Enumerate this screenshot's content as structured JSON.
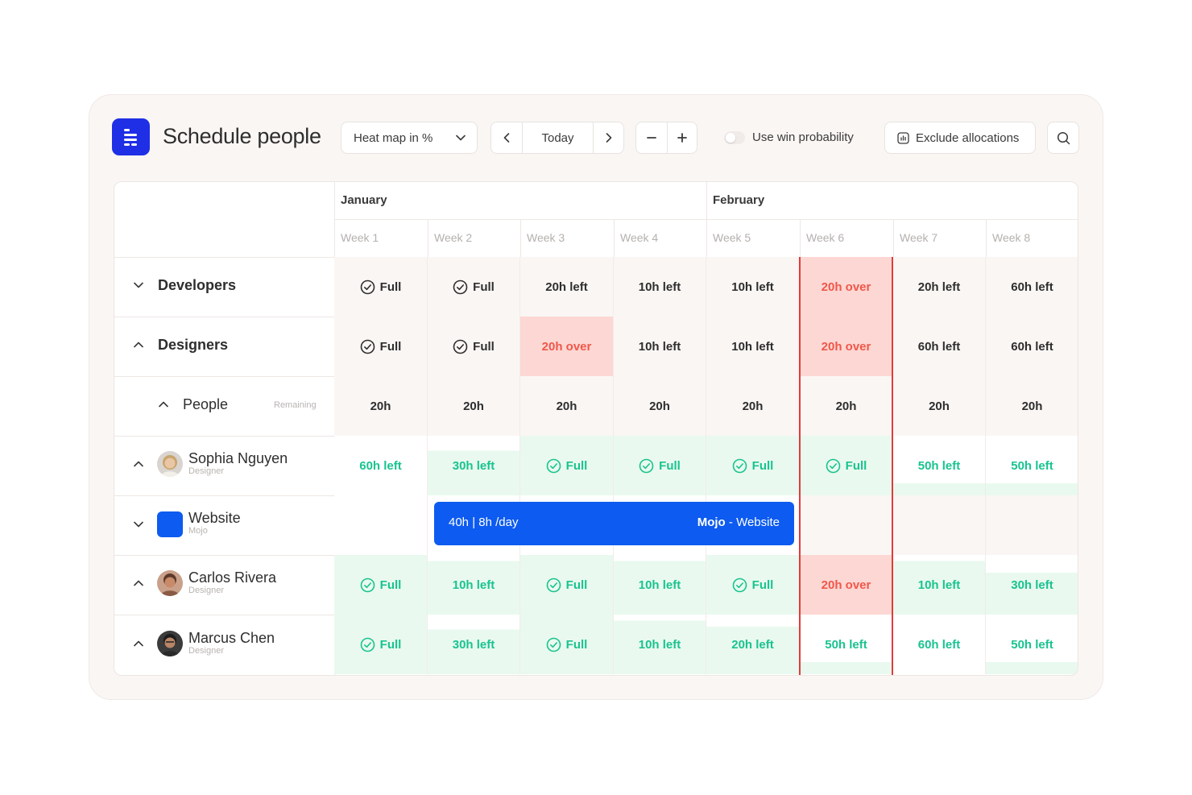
{
  "app": {
    "title": "Schedule people",
    "logo": "app-logo-icon"
  },
  "toolbar": {
    "view_select": "Heat map in %",
    "today_label": "Today",
    "win_probability_label": "Use win probability",
    "win_probability_on": false,
    "exclude_label": "Exclude allocations"
  },
  "months": [
    {
      "label": "January"
    },
    {
      "label": "February"
    }
  ],
  "weeks": [
    "Week 1",
    "Week 2",
    "Week 3",
    "Week 4",
    "Week 5",
    "Week 6",
    "Week 7",
    "Week 8"
  ],
  "colors": {
    "accent": "#1f2fe6",
    "bar": "#0d5bf0",
    "over_bg": "#fcd7d3",
    "over_text": "#f0574a",
    "green_bg": "#e9f9ef",
    "green_text": "#19c38f",
    "neutral_bg": "#faf6f4",
    "today_line": "#e23b3b"
  },
  "rows": {
    "developers": {
      "label": "Developers",
      "cells": [
        {
          "text": "Full",
          "check": true,
          "state": "neutral"
        },
        {
          "text": "Full",
          "check": true,
          "state": "neutral"
        },
        {
          "text": "20h left",
          "state": "neutral"
        },
        {
          "text": "10h left",
          "state": "neutral"
        },
        {
          "text": "10h left",
          "state": "neutral"
        },
        {
          "text": "20h over",
          "state": "over"
        },
        {
          "text": "20h left",
          "state": "neutral"
        },
        {
          "text": "60h left",
          "state": "neutral"
        }
      ]
    },
    "designers": {
      "label": "Designers",
      "cells": [
        {
          "text": "Full",
          "check": true,
          "state": "neutral"
        },
        {
          "text": "Full",
          "check": true,
          "state": "neutral"
        },
        {
          "text": "20h over",
          "state": "over"
        },
        {
          "text": "10h left",
          "state": "neutral"
        },
        {
          "text": "10h left",
          "state": "neutral"
        },
        {
          "text": "20h over",
          "state": "over"
        },
        {
          "text": "60h left",
          "state": "neutral"
        },
        {
          "text": "60h left",
          "state": "neutral"
        }
      ]
    },
    "people": {
      "label": "People",
      "remaining_label": "Remaining",
      "cells": [
        {
          "text": "20h",
          "state": "neutral"
        },
        {
          "text": "20h",
          "state": "neutral"
        },
        {
          "text": "20h",
          "state": "neutral"
        },
        {
          "text": "20h",
          "state": "neutral"
        },
        {
          "text": "20h",
          "state": "neutral"
        },
        {
          "text": "20h",
          "state": "neutral"
        },
        {
          "text": "20h",
          "state": "neutral"
        },
        {
          "text": "20h",
          "state": "neutral"
        }
      ]
    },
    "sophia": {
      "name": "Sophia Nguyen",
      "role": "Designer",
      "cells": [
        {
          "text": "60h left",
          "state": "green",
          "fill": 0.0
        },
        {
          "text": "30h left",
          "state": "green",
          "fill": 0.75
        },
        {
          "text": "Full",
          "check": true,
          "state": "green",
          "fill": 1.0
        },
        {
          "text": "Full",
          "check": true,
          "state": "green",
          "fill": 1.0
        },
        {
          "text": "Full",
          "check": true,
          "state": "green",
          "fill": 1.0
        },
        {
          "text": "Full",
          "check": true,
          "state": "green",
          "fill": 1.0
        },
        {
          "text": "50h left",
          "state": "green",
          "fill": 0.2
        },
        {
          "text": "50h left",
          "state": "green",
          "fill": 0.2
        }
      ]
    },
    "website": {
      "name": "Website",
      "client": "Mojo",
      "bar": {
        "hours": "40h | 8h /day",
        "client": "Mojo",
        "project": "Website"
      }
    },
    "carlos": {
      "name": "Carlos Rivera",
      "role": "Designer",
      "cells": [
        {
          "text": "Full",
          "check": true,
          "state": "green",
          "fill": 1.0
        },
        {
          "text": "10h left",
          "state": "green",
          "fill": 0.9
        },
        {
          "text": "Full",
          "check": true,
          "state": "green",
          "fill": 1.0
        },
        {
          "text": "10h left",
          "state": "green",
          "fill": 0.9
        },
        {
          "text": "Full",
          "check": true,
          "state": "green",
          "fill": 1.0
        },
        {
          "text": "20h over",
          "state": "over",
          "fill": 1.0
        },
        {
          "text": "10h left",
          "state": "green",
          "fill": 0.9
        },
        {
          "text": "30h left",
          "state": "green",
          "fill": 0.7
        }
      ]
    },
    "marcus": {
      "name": "Marcus Chen",
      "role": "Designer",
      "cells": [
        {
          "text": "Full",
          "check": true,
          "state": "green",
          "fill": 1.0
        },
        {
          "text": "30h left",
          "state": "green",
          "fill": 0.75
        },
        {
          "text": "Full",
          "check": true,
          "state": "green",
          "fill": 1.0
        },
        {
          "text": "10h left",
          "state": "green",
          "fill": 0.9
        },
        {
          "text": "20h left",
          "state": "green",
          "fill": 0.8
        },
        {
          "text": "50h left",
          "state": "green",
          "fill": 0.2
        },
        {
          "text": "60h left",
          "state": "green",
          "fill": 0.0
        },
        {
          "text": "50h left",
          "state": "green",
          "fill": 0.2
        }
      ]
    }
  }
}
